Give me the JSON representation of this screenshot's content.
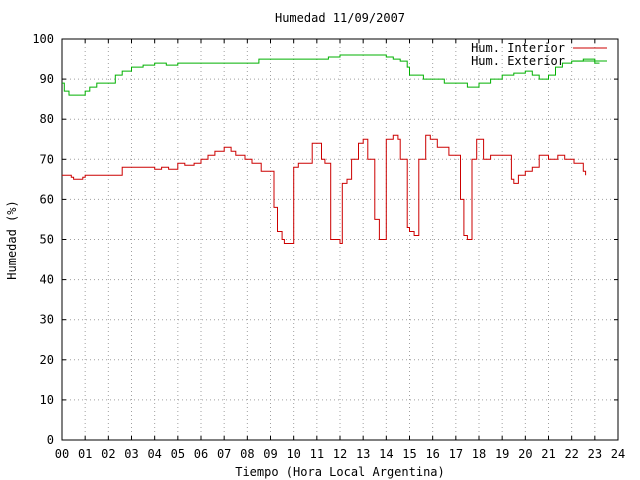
{
  "chart_data": {
    "type": "line",
    "title": "Humedad 11/09/2007",
    "xlabel": "Tiempo (Hora Local Argentina)",
    "ylabel": "Humedad (%)",
    "xlim": [
      0,
      24
    ],
    "ylim": [
      0,
      100
    ],
    "x_ticks": [
      "00",
      "01",
      "02",
      "03",
      "04",
      "05",
      "06",
      "07",
      "08",
      "09",
      "10",
      "11",
      "12",
      "13",
      "14",
      "15",
      "16",
      "17",
      "18",
      "19",
      "20",
      "21",
      "22",
      "23",
      "24"
    ],
    "y_ticks": [
      "0",
      "10",
      "20",
      "30",
      "40",
      "50",
      "60",
      "70",
      "80",
      "90",
      "100"
    ],
    "grid": true,
    "legend_position": "top-right",
    "series": [
      {
        "name": "Hum. Interior",
        "color": "#cc0000",
        "x": [
          0,
          0.4,
          0.5,
          0.9,
          1.0,
          1.5,
          2.0,
          2.4,
          2.6,
          3.5,
          4.0,
          4.3,
          4.6,
          5.0,
          5.3,
          5.7,
          6.0,
          6.3,
          6.6,
          7.0,
          7.3,
          7.5,
          7.9,
          8.2,
          8.6,
          9.0,
          9.15,
          9.3,
          9.5,
          9.6,
          10.0,
          10.2,
          10.4,
          10.8,
          11.2,
          11.35,
          11.5,
          11.6,
          12.0,
          12.1,
          12.3,
          12.5,
          12.8,
          13.0,
          13.2,
          13.4,
          13.5,
          13.7,
          14.0,
          14.3,
          14.5,
          14.6,
          14.9,
          15.0,
          15.2,
          15.4,
          15.7,
          15.9,
          16.2,
          16.7,
          16.9,
          17.0,
          17.2,
          17.35,
          17.5,
          17.7,
          17.9,
          18.2,
          18.5,
          18.8,
          19.3,
          19.4,
          19.5,
          19.7,
          20.0,
          20.3,
          20.6,
          21.0,
          21.4,
          21.7,
          22.1,
          22.5,
          22.6
        ],
        "y": [
          66,
          65.5,
          65,
          65.5,
          66,
          66,
          66,
          66,
          68,
          68,
          67.5,
          68,
          67.5,
          69,
          68.5,
          69,
          70,
          71,
          72,
          73,
          72,
          71,
          70,
          69,
          67,
          67,
          58,
          52,
          50,
          49,
          68,
          69,
          69,
          74,
          70,
          69,
          69,
          50,
          49,
          64,
          65,
          70,
          74,
          75,
          70,
          70,
          55,
          50,
          75,
          76,
          75,
          70,
          53,
          52,
          51,
          70,
          76,
          75,
          73,
          71,
          71,
          71,
          60,
          51,
          50,
          70,
          75,
          70,
          71,
          71,
          71,
          65,
          64,
          66,
          67,
          68,
          71,
          70,
          71,
          70,
          69,
          67,
          66
        ]
      },
      {
        "name": "Hum. Exterior",
        "color": "#00b000",
        "x": [
          0,
          0.1,
          0.3,
          0.6,
          1.0,
          1.2,
          1.5,
          2.0,
          2.3,
          2.6,
          3.0,
          3.5,
          4.0,
          4.5,
          5.0,
          5.5,
          6.0,
          6.5,
          7.0,
          7.5,
          8.0,
          8.5,
          9.0,
          10.0,
          11.0,
          11.5,
          12.0,
          12.5,
          13.0,
          13.5,
          14.0,
          14.3,
          14.6,
          14.9,
          15.0,
          15.3,
          15.6,
          16.0,
          16.5,
          17.0,
          17.5,
          18.0,
          18.5,
          19.0,
          19.5,
          20.0,
          20.3,
          20.6,
          21.0,
          21.3,
          21.6,
          22.0,
          22.5,
          23.0,
          23.2
        ],
        "y": [
          89,
          87,
          86,
          86,
          87,
          88,
          89,
          89,
          91,
          92,
          93,
          93.5,
          94,
          93.5,
          94,
          94,
          94,
          94,
          94,
          94,
          94,
          95,
          95,
          95,
          95,
          95.5,
          96,
          96,
          96,
          96,
          95.5,
          95,
          94.5,
          93,
          91,
          91,
          90,
          90,
          89,
          89,
          88,
          89,
          90,
          91,
          91.5,
          92,
          91,
          90,
          91,
          93,
          94,
          94.5,
          95,
          94,
          94
        ]
      }
    ]
  }
}
